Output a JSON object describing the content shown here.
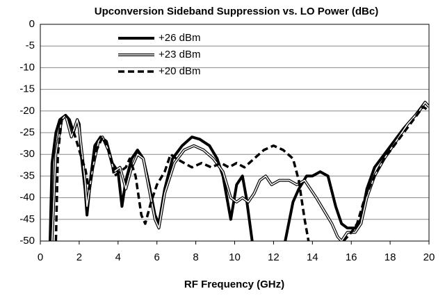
{
  "chart_data": {
    "type": "line",
    "title": "Upconversion Sideband Suppression vs. LO Power (dBc)",
    "x_label": "RF Frequency (GHz)",
    "xlim": [
      0,
      20
    ],
    "xticks": [
      0,
      2,
      4,
      6,
      8,
      10,
      12,
      14,
      16,
      18,
      20
    ],
    "ylim": [
      -50,
      0
    ],
    "yticks": [
      0,
      -5,
      -10,
      -15,
      -20,
      -25,
      -30,
      -35,
      -40,
      -45,
      -50
    ],
    "grid": true,
    "legend": "upper center",
    "series": [
      {
        "name": "+26 dBm",
        "color": "#000000",
        "linestyle": "solid",
        "x": [
          0.5,
          0.6,
          0.8,
          1.0,
          1.3,
          1.5,
          1.7,
          1.9,
          2.0,
          2.1,
          2.3,
          2.4,
          2.6,
          2.8,
          3.1,
          3.4,
          3.7,
          4.0,
          4.2,
          4.4,
          4.7,
          5.0,
          5.3,
          5.6,
          5.9,
          6.1,
          6.4,
          6.8,
          7.3,
          7.8,
          8.2,
          8.7,
          9.1,
          9.4,
          9.8,
          10.1,
          10.4,
          10.6,
          10.9,
          11.5,
          12.6,
          13.0,
          13.3,
          13.7,
          14.0,
          14.4,
          14.8,
          15.2,
          15.5,
          15.8,
          16.2,
          16.5,
          16.8,
          17.2,
          17.7,
          18.2,
          18.7,
          19.3,
          19.8,
          20.0
        ],
        "values": [
          -50,
          -32,
          -25,
          -22,
          -21,
          -22,
          -25,
          -22,
          -23,
          -30,
          -38,
          -44,
          -35,
          -28,
          -26,
          -27,
          -32,
          -34,
          -42,
          -36,
          -31,
          -29,
          -31,
          -37,
          -44,
          -46,
          -38,
          -31,
          -28,
          -26,
          -26.5,
          -28,
          -31,
          -35,
          -45,
          -37,
          -35,
          -40,
          -50,
          null,
          -50,
          -41,
          -38,
          -35,
          -35,
          -34,
          -35,
          -42,
          -46,
          -47,
          -47,
          -45,
          -38,
          -33,
          -30,
          -27,
          -24,
          -21,
          -18,
          -19
        ]
      },
      {
        "name": "+23 dBm",
        "color": "#000000",
        "linestyle": "double",
        "x": [
          0.6,
          0.8,
          1.1,
          1.3,
          1.6,
          1.9,
          2.0,
          2.3,
          2.4,
          2.7,
          3.0,
          3.2,
          3.5,
          3.8,
          4.1,
          4.4,
          4.7,
          5.0,
          5.3,
          5.6,
          5.9,
          6.1,
          6.4,
          6.9,
          7.4,
          7.9,
          8.4,
          8.9,
          9.4,
          9.8,
          10.1,
          10.4,
          10.7,
          11.0,
          11.3,
          11.6,
          11.9,
          12.3,
          12.8,
          13.2,
          13.6,
          14.2,
          14.6,
          15.0,
          15.3,
          15.5,
          15.8,
          16.2,
          16.5,
          16.8,
          17.2,
          17.7,
          18.3,
          18.9,
          19.5,
          19.8,
          20.0
        ],
        "values": [
          -50,
          -30,
          -22,
          -21,
          -26,
          -22,
          -24,
          -36,
          -42,
          -33,
          -27,
          -26,
          -29,
          -34,
          -33,
          -38,
          -33,
          -30,
          -31,
          -38,
          -45,
          -47,
          -39,
          -32,
          -29,
          -28,
          -29,
          -31,
          -34,
          -40,
          -41,
          -40,
          -41,
          -39,
          -36,
          -35,
          -37,
          -36,
          -36,
          -37,
          -36,
          -40,
          -43,
          -46,
          -49,
          -50,
          -48,
          -48,
          -46,
          -40,
          -35,
          -31,
          -27,
          -23,
          -20,
          -18,
          -19
        ]
      },
      {
        "name": "+20 dBm",
        "color": "#000000",
        "linestyle": "dashed",
        "x": [
          0.8,
          0.9,
          1.1,
          1.3,
          1.5,
          1.8,
          2.0,
          2.2,
          2.3,
          2.5,
          2.8,
          3.2,
          3.6,
          3.8,
          4.1,
          4.4,
          4.6,
          4.9,
          5.2,
          5.4,
          5.7,
          6.0,
          6.4,
          6.7,
          7.0,
          7.4,
          7.8,
          8.3,
          8.8,
          9.3,
          9.7,
          10.1,
          10.5,
          11.0,
          11.5,
          12.0,
          12.5,
          13.0,
          13.3,
          13.6,
          13.8,
          14.7,
          15.6,
          16.0,
          16.3,
          16.7,
          17.2,
          17.7,
          18.2,
          18.7,
          19.2,
          19.7,
          20.0
        ],
        "values": [
          -50,
          -30,
          -22,
          -21,
          -22,
          -26,
          -29,
          -32,
          -33,
          -38,
          -30,
          -26,
          -30,
          -35,
          -34,
          -33,
          -31,
          -35,
          -44,
          -46,
          -41,
          -37,
          -34,
          -30,
          -31,
          -32,
          -33,
          -32,
          -33,
          -32,
          -33,
          -32,
          -33,
          -31,
          -29,
          -28,
          -29,
          -31,
          -36,
          -45,
          -50,
          null,
          -50,
          -48,
          -46,
          -40,
          -35,
          -31,
          -28,
          -25,
          -22,
          -19,
          -20
        ]
      }
    ]
  }
}
